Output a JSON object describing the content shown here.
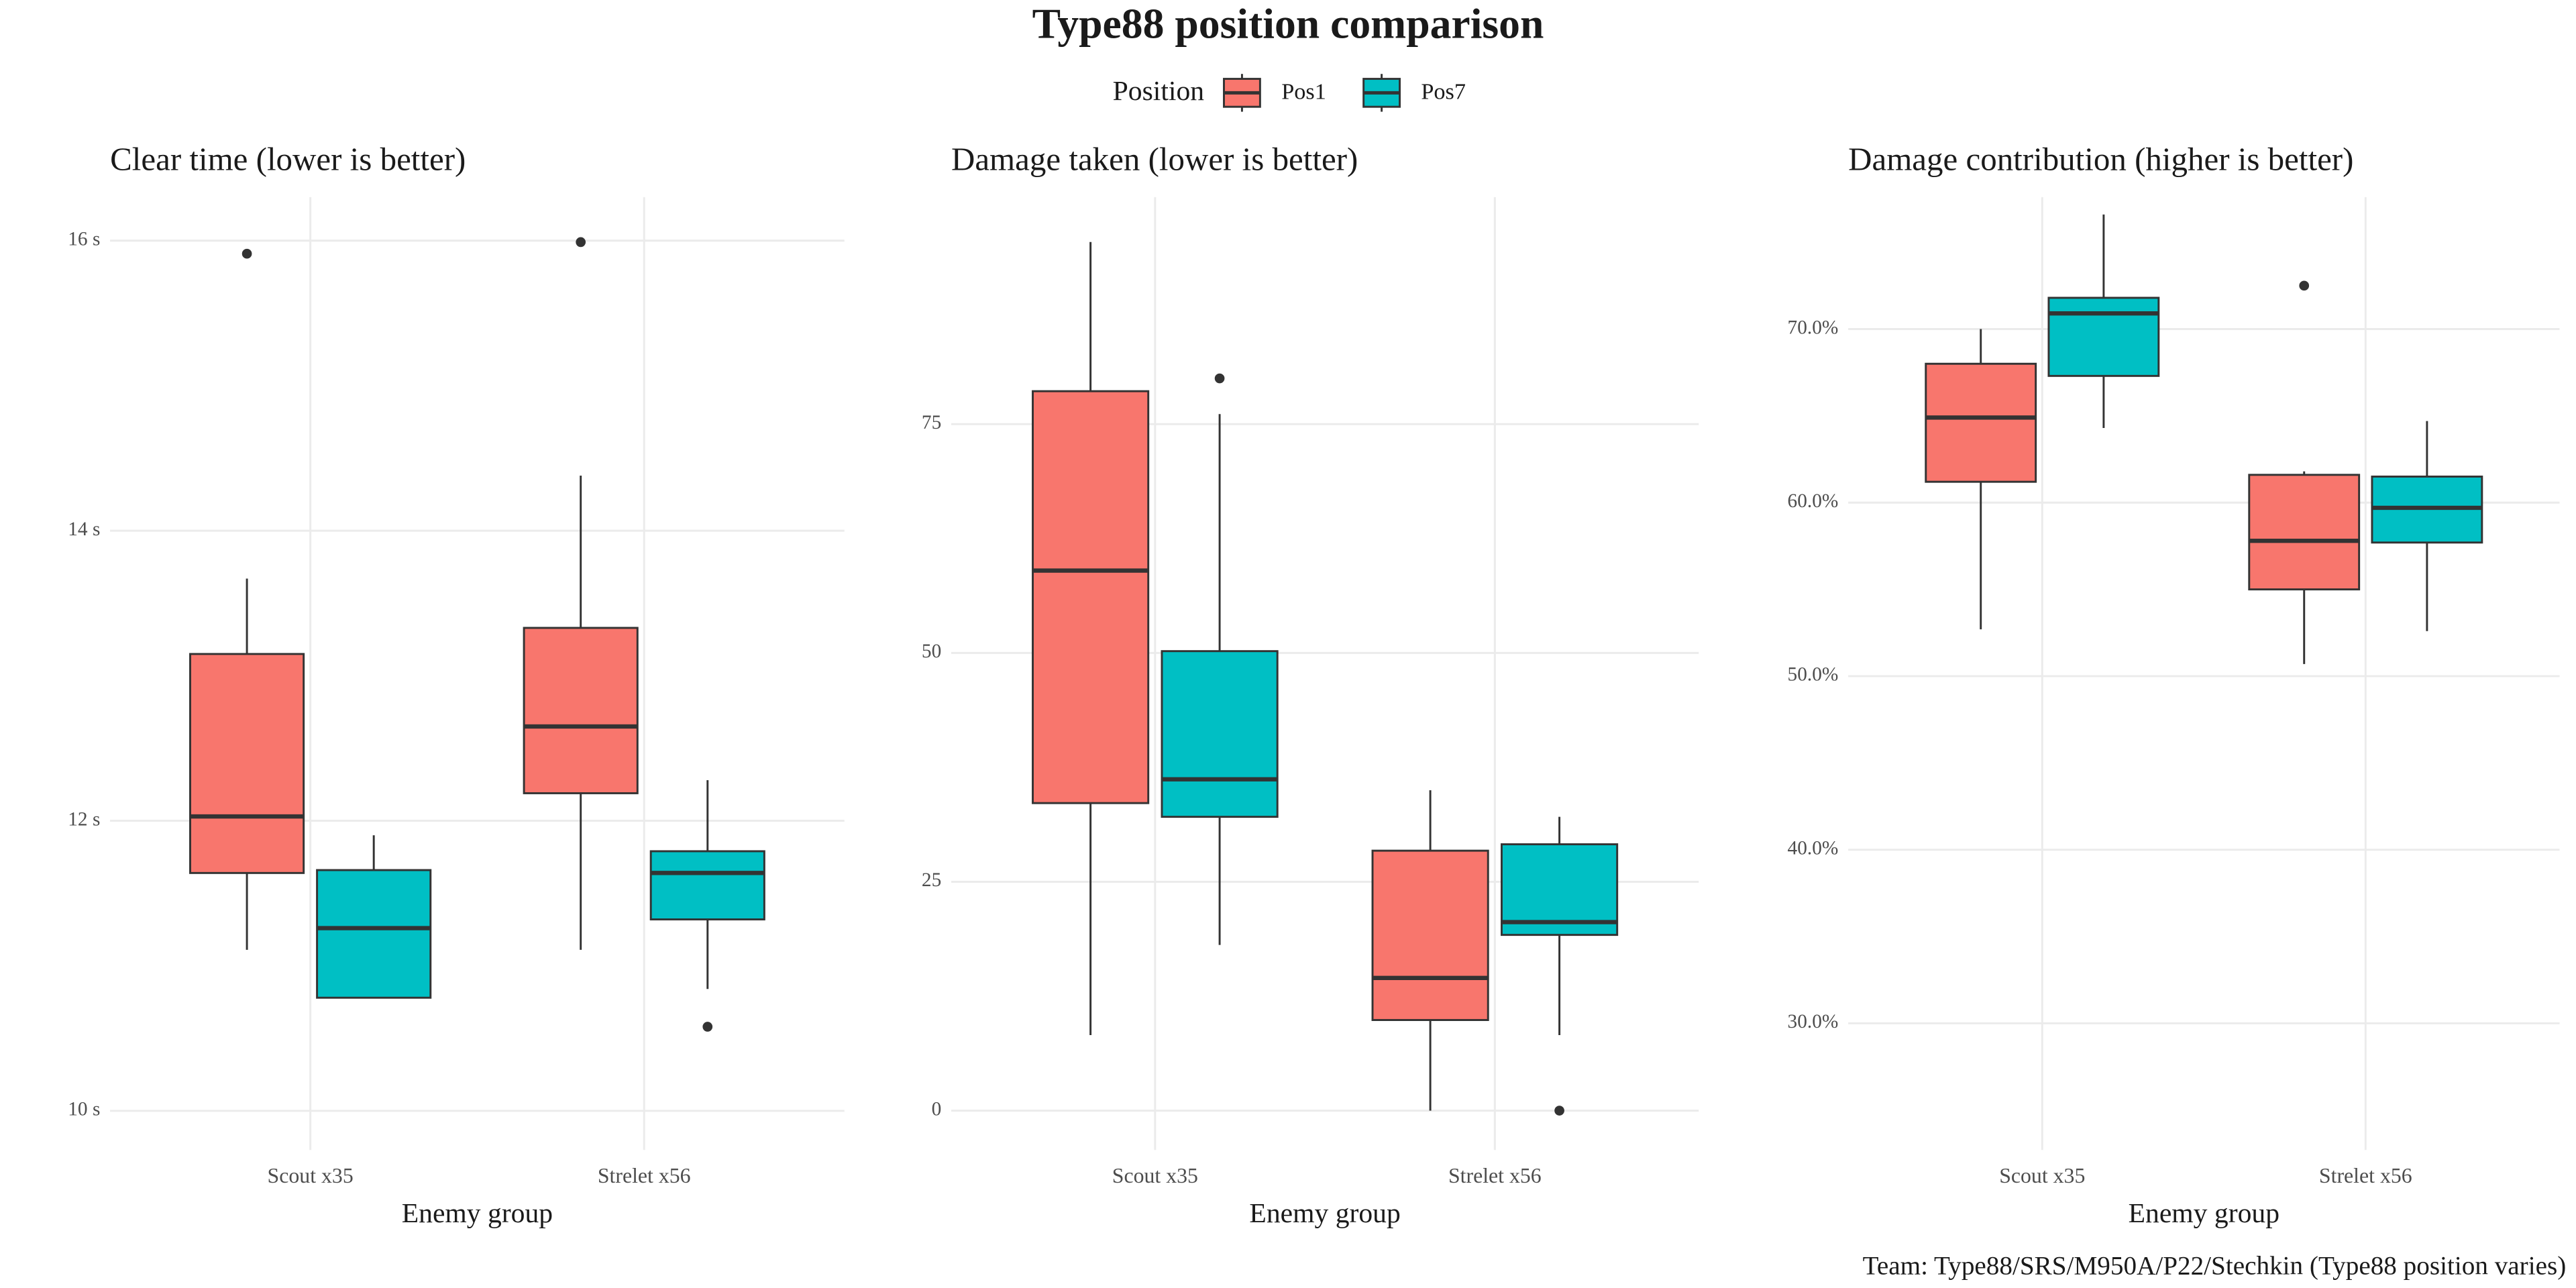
{
  "title": "Type88 position comparison",
  "legend": {
    "title": "Position"
  },
  "caption": "Team: Type88/SRS/M950A/P22/Stechkin (Type88 position varies)",
  "chart_data": [
    {
      "type": "box",
      "title": "Clear time (lower is better)",
      "xlabel": "Enemy group",
      "categories": [
        "Scout x35",
        "Strelet x56"
      ],
      "ylim": [
        9.73,
        16.3
      ],
      "yticks": [
        {
          "value": 10,
          "label": "10 s"
        },
        {
          "value": 12,
          "label": "12 s"
        },
        {
          "value": 14,
          "label": "14 s"
        },
        {
          "value": 16,
          "label": "16 s"
        }
      ],
      "grid": true,
      "series": [
        {
          "name": "Pos1",
          "color": "#F8766D",
          "boxes": [
            {
              "low": 11.11,
              "q1": 11.64,
              "median": 12.03,
              "q3": 13.15,
              "high": 13.67,
              "outliers": [
                15.91
              ]
            },
            {
              "low": 11.11,
              "q1": 12.19,
              "median": 12.65,
              "q3": 13.33,
              "high": 14.38,
              "outliers": [
                15.99
              ]
            }
          ]
        },
        {
          "name": "Pos7",
          "color": "#00BFC4",
          "boxes": [
            {
              "low": 10.78,
              "q1": 10.78,
              "median": 11.26,
              "q3": 11.66,
              "high": 11.9,
              "outliers": []
            },
            {
              "low": 10.84,
              "q1": 11.32,
              "median": 11.64,
              "q3": 11.79,
              "high": 12.28,
              "outliers": [
                10.58
              ]
            }
          ]
        }
      ]
    },
    {
      "type": "box",
      "title": "Damage taken (lower is better)",
      "xlabel": "Enemy group",
      "categories": [
        "Scout x35",
        "Strelet x56"
      ],
      "ylim": [
        -4.3,
        99.8
      ],
      "yticks": [
        0,
        25,
        50,
        75
      ],
      "grid": true,
      "series": [
        {
          "name": "Pos1",
          "color": "#F8766D",
          "boxes": [
            {
              "low": 8.25,
              "q1": 33.6,
              "median": 59.0,
              "q3": 78.6,
              "high": 94.9,
              "outliers": []
            },
            {
              "low": 0,
              "q1": 9.9,
              "median": 14.5,
              "q3": 28.4,
              "high": 35.0,
              "outliers": []
            }
          ]
        },
        {
          "name": "Pos7",
          "color": "#00BFC4",
          "boxes": [
            {
              "low": 18.1,
              "q1": 32.1,
              "median": 36.2,
              "q3": 50.2,
              "high": 76.1,
              "outliers": [
                80.0
              ]
            },
            {
              "low": 8.25,
              "q1": 19.2,
              "median": 20.6,
              "q3": 29.1,
              "high": 32.1,
              "outliers": [
                0
              ]
            }
          ]
        }
      ]
    },
    {
      "type": "box",
      "title": "Damage contribution (higher is better)",
      "xlabel": "Enemy group",
      "categories": [
        "Scout x35",
        "Strelet x56"
      ],
      "ylim": [
        22.7,
        77.6
      ],
      "yticks": [
        {
          "value": 30,
          "label": "30.0%"
        },
        {
          "value": 40,
          "label": "40.0%"
        },
        {
          "value": 50,
          "label": "50.0%"
        },
        {
          "value": 60,
          "label": "60.0%"
        },
        {
          "value": 70,
          "label": "70.0%"
        }
      ],
      "grid": true,
      "series": [
        {
          "name": "Pos1",
          "color": "#F8766D",
          "boxes": [
            {
              "low": 52.7,
              "q1": 61.2,
              "median": 64.9,
              "q3": 68.0,
              "high": 70.0,
              "outliers": []
            },
            {
              "low": 50.7,
              "q1": 55.0,
              "median": 57.8,
              "q3": 61.6,
              "high": 61.8,
              "outliers": [
                72.5
              ]
            }
          ]
        },
        {
          "name": "Pos7",
          "color": "#00BFC4",
          "boxes": [
            {
              "low": 64.3,
              "q1": 67.3,
              "median": 70.9,
              "q3": 71.8,
              "high": 76.6,
              "outliers": []
            },
            {
              "low": 52.6,
              "q1": 57.7,
              "median": 59.7,
              "q3": 61.5,
              "high": 64.7,
              "outliers": []
            }
          ]
        }
      ]
    }
  ]
}
